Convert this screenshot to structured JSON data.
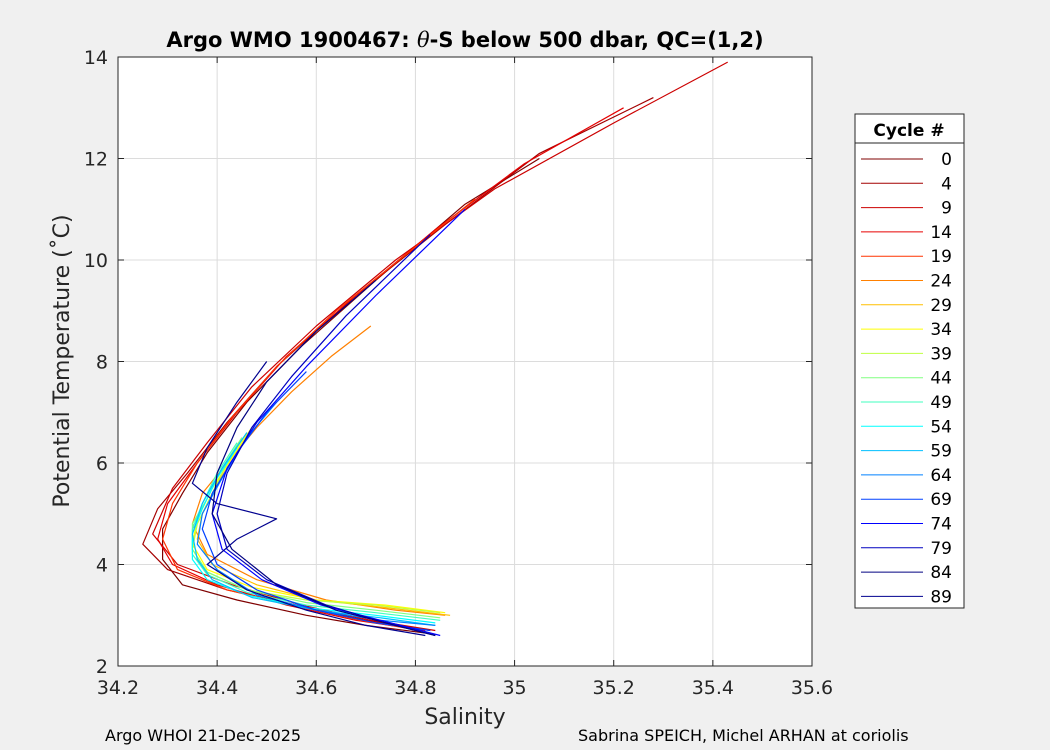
{
  "chart_data": {
    "type": "line",
    "title": "Argo WMO 1900467: θ-S below 500 dbar,  QC=(1,2)",
    "title_prefix": "Argo WMO 1900467: ",
    "title_theta": "θ",
    "title_suffix": "-S below 500 dbar,  QC=(1,2)",
    "xlabel": "Salinity",
    "ylabel": "Potential Temperature (˚C)",
    "xlim": [
      34.2,
      35.6
    ],
    "ylim": [
      2,
      14
    ],
    "xticks": [
      34.2,
      34.4,
      34.6,
      34.8,
      35,
      35.2,
      35.4,
      35.6
    ],
    "xtick_labels": [
      "34.2",
      "34.4",
      "34.6",
      "34.8",
      "35",
      "35.2",
      "35.4",
      "35.6"
    ],
    "yticks": [
      2,
      4,
      6,
      8,
      10,
      12,
      14
    ],
    "ytick_labels": [
      "2",
      "4",
      "6",
      "8",
      "10",
      "12",
      "14"
    ],
    "grid": true,
    "legend_title": "Cycle #",
    "legend_position": "right, outside",
    "series": [
      {
        "name": "0",
        "color": "#7f0000",
        "x": [
          35.05,
          34.9,
          34.72,
          34.57,
          34.46,
          34.38,
          34.33,
          34.29,
          34.29,
          34.33,
          34.44,
          34.58,
          34.7,
          34.82
        ],
        "y": [
          12.0,
          11.1,
          9.6,
          8.3,
          7.2,
          6.2,
          5.4,
          4.7,
          4.1,
          3.6,
          3.3,
          3.0,
          2.8,
          2.65
        ]
      },
      {
        "name": "4",
        "color": "#a40000",
        "x": [
          35.28,
          35.05,
          34.86,
          34.68,
          34.52,
          34.42,
          34.34,
          34.28,
          34.25,
          34.3,
          34.42,
          34.56,
          34.7,
          34.83
        ],
        "y": [
          13.2,
          12.1,
          10.7,
          9.3,
          7.9,
          6.8,
          5.8,
          5.1,
          4.4,
          3.9,
          3.5,
          3.2,
          2.9,
          2.7
        ]
      },
      {
        "name": "9",
        "color": "#cc0000",
        "x": [
          35.43,
          35.2,
          34.96,
          34.76,
          34.6,
          34.47,
          34.38,
          34.31,
          34.27,
          34.32,
          34.43,
          34.57,
          34.71,
          34.84
        ],
        "y": [
          13.9,
          12.7,
          11.4,
          10.0,
          8.7,
          7.5,
          6.4,
          5.5,
          4.6,
          4.0,
          3.6,
          3.2,
          2.9,
          2.7
        ]
      },
      {
        "name": "14",
        "color": "#e60000",
        "x": [
          35.22,
          35.02,
          34.84,
          34.68,
          34.54,
          34.44,
          34.36,
          34.3,
          34.28,
          34.31,
          34.4,
          34.54,
          34.68,
          34.82
        ],
        "y": [
          13.0,
          11.9,
          10.6,
          9.3,
          8.1,
          7.0,
          6.0,
          5.2,
          4.5,
          4.0,
          3.6,
          3.2,
          2.9,
          2.7
        ]
      },
      {
        "name": "19",
        "color": "#ff3300",
        "x": [
          34.92,
          34.78,
          34.64,
          34.52,
          34.43,
          34.36,
          34.31,
          34.29,
          34.32,
          34.42,
          34.55,
          34.69,
          34.81
        ],
        "y": [
          11.2,
          10.1,
          9.0,
          7.9,
          6.9,
          6.0,
          5.2,
          4.5,
          3.9,
          3.5,
          3.2,
          2.9,
          2.7
        ]
      },
      {
        "name": "24",
        "color": "#ff8000",
        "x": [
          34.71,
          34.63,
          34.55,
          34.48,
          34.42,
          34.37,
          34.35,
          34.38,
          34.48,
          34.62,
          34.76,
          34.86
        ],
        "y": [
          8.7,
          8.1,
          7.4,
          6.7,
          6.0,
          5.4,
          4.8,
          4.2,
          3.7,
          3.3,
          3.1,
          3.0
        ]
      },
      {
        "name": "29",
        "color": "#ffbf00",
        "x": [
          34.48,
          34.44,
          34.4,
          34.37,
          34.36,
          34.39,
          34.48,
          34.6,
          34.74,
          34.87
        ],
        "y": [
          6.8,
          6.2,
          5.6,
          5.0,
          4.5,
          4.0,
          3.6,
          3.3,
          3.15,
          3.0
        ]
      },
      {
        "name": "34",
        "color": "#ffff00",
        "x": [
          34.47,
          34.43,
          34.39,
          34.36,
          34.35,
          34.38,
          34.47,
          34.6,
          34.74,
          34.86
        ],
        "y": [
          6.7,
          6.1,
          5.5,
          4.9,
          4.4,
          3.9,
          3.55,
          3.3,
          3.2,
          3.05
        ]
      },
      {
        "name": "39",
        "color": "#bfff40",
        "x": [
          34.46,
          34.42,
          34.39,
          34.36,
          34.35,
          34.38,
          34.46,
          34.58,
          34.72,
          34.85
        ],
        "y": [
          6.6,
          6.0,
          5.4,
          4.8,
          4.3,
          3.85,
          3.5,
          3.3,
          3.2,
          3.05
        ]
      },
      {
        "name": "44",
        "color": "#80ff80",
        "x": [
          34.45,
          34.41,
          34.38,
          34.35,
          34.35,
          34.38,
          34.46,
          34.58,
          34.72,
          34.85
        ],
        "y": [
          6.5,
          5.9,
          5.3,
          4.8,
          4.3,
          3.85,
          3.5,
          3.25,
          3.1,
          2.95
        ]
      },
      {
        "name": "49",
        "color": "#40ffbf",
        "x": [
          34.44,
          34.4,
          34.37,
          34.35,
          34.35,
          34.38,
          34.46,
          34.58,
          34.72,
          34.85
        ],
        "y": [
          6.4,
          5.8,
          5.2,
          4.7,
          4.2,
          3.8,
          3.45,
          3.2,
          3.05,
          2.9
        ]
      },
      {
        "name": "54",
        "color": "#00ffff",
        "x": [
          34.44,
          34.4,
          34.37,
          34.35,
          34.35,
          34.38,
          34.46,
          34.58,
          34.72,
          34.84
        ],
        "y": [
          6.3,
          5.7,
          5.1,
          4.6,
          4.1,
          3.7,
          3.4,
          3.15,
          3.0,
          2.85
        ]
      },
      {
        "name": "59",
        "color": "#00bfff",
        "x": [
          34.46,
          34.41,
          34.37,
          34.35,
          34.36,
          34.39,
          34.47,
          34.6,
          34.73,
          34.84
        ],
        "y": [
          6.6,
          5.9,
          5.2,
          4.6,
          4.1,
          3.7,
          3.35,
          3.1,
          2.95,
          2.8
        ]
      },
      {
        "name": "64",
        "color": "#0080ff",
        "x": [
          34.52,
          34.46,
          34.41,
          34.37,
          34.36,
          34.4,
          34.48,
          34.6,
          34.73,
          34.84
        ],
        "y": [
          7.2,
          6.5,
          5.7,
          5.0,
          4.4,
          3.9,
          3.4,
          3.1,
          2.9,
          2.8
        ]
      },
      {
        "name": "69",
        "color": "#0040ff",
        "x": [
          34.58,
          34.5,
          34.44,
          34.39,
          34.37,
          34.4,
          34.48,
          34.6,
          34.72,
          34.83
        ],
        "y": [
          7.8,
          7.0,
          6.2,
          5.4,
          4.7,
          4.0,
          3.5,
          3.1,
          2.85,
          2.7
        ]
      },
      {
        "name": "74",
        "color": "#0000ff",
        "x": [
          34.9,
          34.72,
          34.58,
          34.48,
          34.42,
          34.39,
          34.41,
          34.49,
          34.61,
          34.73,
          34.85
        ],
        "y": [
          11.0,
          9.3,
          7.9,
          6.8,
          5.9,
          5.0,
          4.3,
          3.7,
          3.2,
          2.9,
          2.6
        ]
      },
      {
        "name": "79",
        "color": "#0000bf",
        "x": [
          34.83,
          34.66,
          34.55,
          34.47,
          34.42,
          34.4,
          34.42,
          34.5,
          34.62,
          34.74,
          34.84
        ],
        "y": [
          10.5,
          8.9,
          7.7,
          6.7,
          5.8,
          5.0,
          4.3,
          3.7,
          3.2,
          2.85,
          2.6
        ]
      },
      {
        "name": "84",
        "color": "#000080",
        "x": [
          34.72,
          34.6,
          34.5,
          34.44,
          34.4,
          34.39,
          34.43,
          34.52,
          34.64,
          34.76,
          34.84
        ],
        "y": [
          9.6,
          8.6,
          7.6,
          6.7,
          5.8,
          5.0,
          4.3,
          3.6,
          3.1,
          2.8,
          2.6
        ]
      },
      {
        "name": "89",
        "color": "#00008f",
        "x": [
          34.5,
          34.44,
          34.38,
          34.35,
          34.4,
          34.52,
          34.44,
          34.38,
          34.46,
          34.58,
          34.7,
          34.82
        ],
        "y": [
          8.0,
          7.2,
          6.3,
          5.6,
          5.2,
          4.9,
          4.5,
          4.0,
          3.5,
          3.1,
          2.8,
          2.6
        ]
      }
    ]
  },
  "footer": {
    "left": "Argo WHOI 21-Dec-2025",
    "right": "Sabrina SPEICH, Michel ARHAN at coriolis"
  }
}
